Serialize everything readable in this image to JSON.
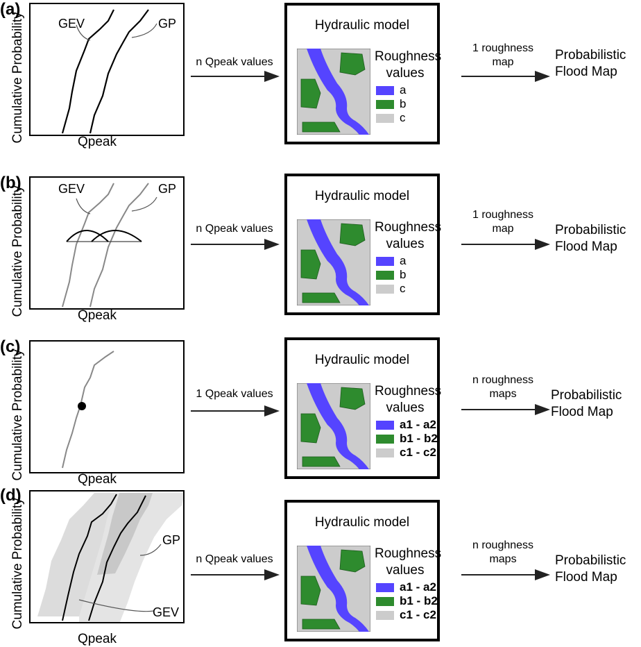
{
  "axis": {
    "y_label": "Cumulative Probability",
    "x_label": "Qpeak"
  },
  "model": {
    "title": "Hydraulic model",
    "roughness_title": [
      "Roughness",
      "values"
    ]
  },
  "output": [
    "Probabilistic",
    "Flood Map"
  ],
  "colors": {
    "river": "#5544ff",
    "vegetation": "#2e8b2e",
    "background": "#cccccc"
  },
  "panels": [
    {
      "tag": "(a)",
      "curve_labels": [
        "GEV",
        "GP"
      ],
      "input_arrow": [
        "n Qpeak values"
      ],
      "output_arrow": [
        "1 roughness",
        "map"
      ],
      "legend": [
        "a",
        "b",
        "c"
      ]
    },
    {
      "tag": "(b)",
      "curve_labels": [
        "GEV",
        "GP"
      ],
      "input_arrow": [
        "n Qpeak values"
      ],
      "output_arrow": [
        "1 roughness",
        "map"
      ],
      "legend": [
        "a",
        "b",
        "c"
      ]
    },
    {
      "tag": "(c)",
      "curve_labels": [],
      "input_arrow": [
        "1 Qpeak values"
      ],
      "output_arrow": [
        "n roughness",
        "maps"
      ],
      "legend": [
        "a1 - a2",
        "b1 - b2",
        "c1 - c2"
      ]
    },
    {
      "tag": "(d)",
      "curve_labels": [
        "GP",
        "GEV"
      ],
      "input_arrow": [
        "n Qpeak values"
      ],
      "output_arrow": [
        "n roughness",
        "maps"
      ],
      "legend": [
        "a1 - a2",
        "b1 - b2",
        "c1 - c2"
      ]
    }
  ]
}
